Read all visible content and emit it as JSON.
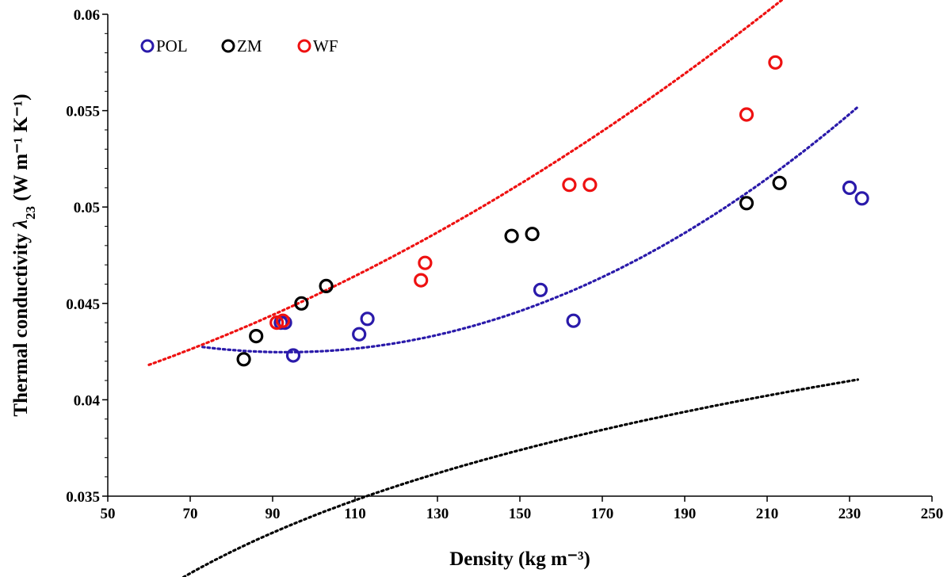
{
  "chart_data": {
    "type": "scatter",
    "title": "",
    "xlabel": "Density (kg m⁻³)",
    "ylabel": {
      "main": "Thermal conductivity ",
      "symbol": "λ",
      "subscript": "23",
      "unit": " (W m⁻¹ K⁻¹)"
    },
    "xlim": [
      50,
      250
    ],
    "ylim": [
      0.035,
      0.06
    ],
    "xticks": [
      50,
      70,
      90,
      110,
      130,
      150,
      170,
      190,
      210,
      230,
      250
    ],
    "yticks": [
      0.035,
      0.04,
      0.045,
      0.05,
      0.055,
      0.06
    ],
    "ytick_labels": [
      "0.035",
      "0.04",
      "0.045",
      "0.05",
      "0.055",
      "0.06"
    ],
    "grid": false,
    "legend_position": "top-left",
    "series": [
      {
        "name": "POL",
        "color": "#2a1aaa",
        "points": [
          [
            92,
            0.044
          ],
          [
            93,
            0.044
          ],
          [
            95,
            0.0423
          ],
          [
            111,
            0.0434
          ],
          [
            113,
            0.0442
          ],
          [
            155,
            0.0457
          ],
          [
            163,
            0.0441
          ],
          [
            230,
            0.051
          ],
          [
            233,
            0.05045
          ]
        ],
        "trend": {
          "type": "polynomial",
          "xrange": [
            73,
            232
          ],
          "coef": [
            0.0482,
            -0.000123,
            6.6e-07
          ]
        }
      },
      {
        "name": "ZM",
        "color": "#000000",
        "points": [
          [
            83,
            0.0421
          ],
          [
            86,
            0.0433
          ],
          [
            97,
            0.045
          ],
          [
            103,
            0.0459
          ],
          [
            148,
            0.0485
          ],
          [
            153,
            0.0486
          ],
          [
            205,
            0.0502
          ],
          [
            213,
            0.05125
          ]
        ],
        "trend": {
          "type": "logarithmic",
          "xrange": [
            63,
            232
          ],
          "coef": [
            -0.00465,
            0.00839
          ]
        }
      },
      {
        "name": "WF",
        "color": "#ee1111",
        "points": [
          [
            91,
            0.044
          ],
          [
            92.5,
            0.0441
          ],
          [
            126,
            0.0462
          ],
          [
            127,
            0.0471
          ],
          [
            162,
            0.05115
          ],
          [
            167,
            0.05115
          ],
          [
            205,
            0.0548
          ],
          [
            212,
            0.0575
          ]
        ],
        "trend": {
          "type": "polynomial",
          "xrange": [
            60,
            222
          ],
          "coef": [
            0.03826,
            4.12e-05,
            3e-07
          ]
        }
      }
    ]
  }
}
